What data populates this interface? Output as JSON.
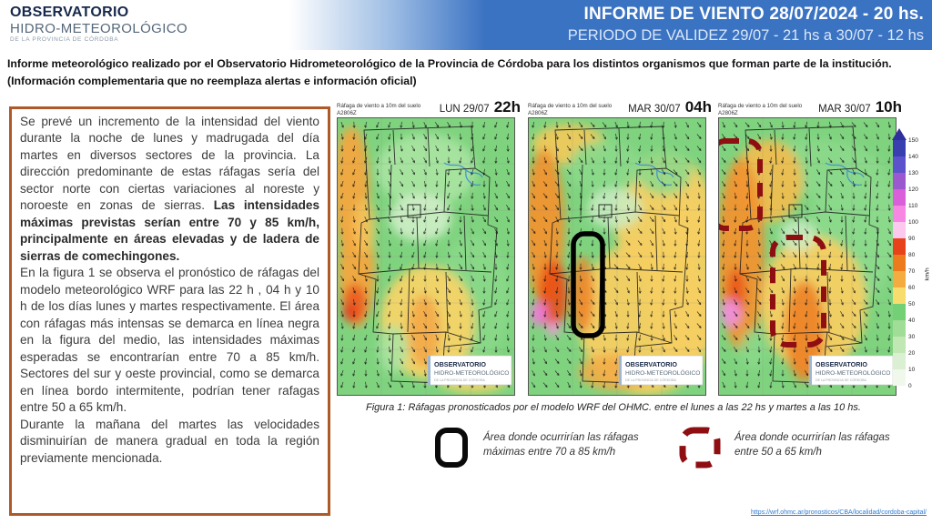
{
  "header": {
    "logo": {
      "line1": "OBSERVATORIO",
      "line2": "HIDRO-METEOROLÓGICO",
      "line3": "DE LA PROVINCIA DE CÓRDOBA"
    },
    "title": "INFORME DE VIENTO 28/07/2024 - 20 hs.",
    "validity": "PERIODO DE VALIDEZ 29/07 - 21 hs a 30/07 - 12 hs",
    "banner_color": "#3b73c3"
  },
  "intro": {
    "line1": "Informe meteorológico realizado por el Observatorio Hidrometeorológico de la Provincia de Córdoba para los distintos organismos que forman parte de la institución.",
    "line2": "(Información complementaria que no reemplaza alertas e información oficial)"
  },
  "report": {
    "border_color": "#ad5a28",
    "p1_normal": "Se prevé un incremento de la intensidad del viento durante la noche de lunes y madrugada del día martes en diversos sectores de la provincia. La dirección predominante de estas ráfagas sería del sector norte con ciertas variaciones al noreste y noroeste en zonas de sierras. ",
    "p1_bold": "Las intensidades máximas previstas serían entre 70 y 85 km/h, principalmente en áreas elevadas y de ladera de sierras de comechingones.",
    "p2": "En la figura 1 se observa el pronóstico de ráfagas del modelo meteorológico WRF para las 22 h , 04 h y 10 h de los días lunes y martes respectivamente. El área con ráfagas más intensas se demarca en línea negra en la figura del medio, las intensidades máximas esperadas se encontrarían entre 70 a 85 km/h. Sectores del sur y oeste provincial, como se demarca en línea bordo intermitente, podrían tener rafagas entre 50 a 65 km/h.",
    "p3": "Durante la mañana del martes las velocidades disminuirían de manera gradual en toda la región previamente mencionada."
  },
  "maps": [
    {
      "variable": "Ráfaga de viento a 10m del suelo",
      "model_run": "A2806Z",
      "day": "LUN 29/07",
      "hour": "22h",
      "marker": "none"
    },
    {
      "variable": "Ráfaga de viento a 10m del suelo",
      "model_run": "A2806Z",
      "day": "MAR 30/07",
      "hour": "04h",
      "marker": "black-solid-rectangle"
    },
    {
      "variable": "Ráfaga de viento a 10m del suelo",
      "model_run": "A2806Z",
      "day": "MAR 30/07",
      "hour": "10h",
      "marker": "dark-red-dashed-rectangles"
    }
  ],
  "map_watermark": {
    "line1": "OBSERVATORIO",
    "line2": "HIDRO-METEOROLÓGICO",
    "line3": "DE LA PROVINCIA DE CÓRDOBA"
  },
  "colorbar": {
    "unit": "km/h",
    "ticks": [
      0,
      10,
      20,
      30,
      40,
      50,
      60,
      70,
      80,
      90,
      100,
      110,
      120,
      130,
      140,
      150
    ],
    "colors": [
      "#f0f8ec",
      "#dbf0d2",
      "#c0e7b4",
      "#a0dd96",
      "#74d074",
      "#f8dc6e",
      "#f4ac40",
      "#ee7a1e",
      "#e8421a",
      "#fbc8ee",
      "#f687e2",
      "#d960d8",
      "#9b59d0",
      "#5c52cc",
      "#3a3fb0"
    ],
    "arrow_color": "#30309c"
  },
  "figure_caption": "Figura 1: Ráfagas pronosticados por el modelo WRF del OHMC. entre el lunes a las 22 hs y martes a las 10 hs.",
  "legend": {
    "item1": {
      "line1": "Área donde ocurrirían las ráfagas",
      "line2": "máximas entre 70 a 85 km/h",
      "color": "#0a0a0a"
    },
    "item2": {
      "line1": "Área donde ocurrirían las ráfagas",
      "line2": "entre 50 a 65 km/h",
      "color": "#8e0e12"
    }
  },
  "footer_link": "https://wrf.ohmc.ar/pronosticos/CBA/localidad/cordoba-capital/"
}
